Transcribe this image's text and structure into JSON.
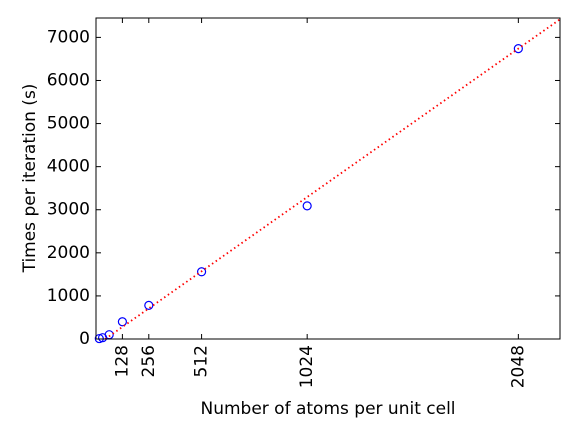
{
  "chart_data": {
    "type": "scatter",
    "xlabel": "Number of atoms per unit cell",
    "ylabel": "Times per iteration (s)",
    "xlim": [
      0,
      2250
    ],
    "ylim": [
      0,
      7450
    ],
    "xticks": [
      128,
      256,
      512,
      1024,
      2048
    ],
    "yticks": [
      0,
      1000,
      2000,
      3000,
      4000,
      5000,
      6000,
      7000
    ],
    "series": [
      {
        "color": "#0000ff",
        "marker": "circle",
        "x": [
          16,
          32,
          64,
          128,
          256,
          512,
          1024,
          2048
        ],
        "values": [
          10,
          30,
          100,
          400,
          780,
          1560,
          3090,
          6740
        ]
      },
      {
        "color": "#ff0000",
        "marker": "dotted-line",
        "x": [
          45,
          2250
        ],
        "values": [
          0,
          7420
        ]
      }
    ]
  }
}
